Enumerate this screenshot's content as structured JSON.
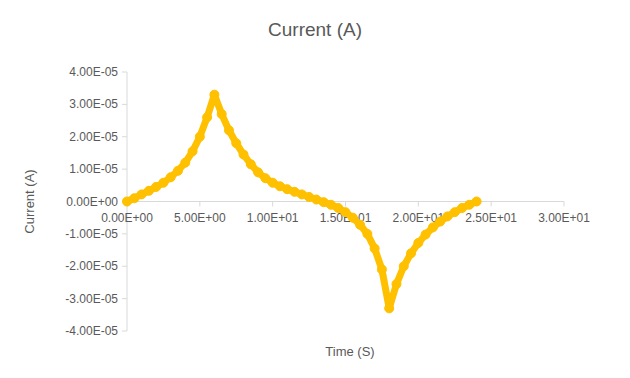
{
  "chart_data": {
    "type": "line",
    "title": "Current (A)",
    "x_label": "Time (S)",
    "y_label": "Current (A)",
    "x": [
      0,
      0.5,
      1,
      1.5,
      2,
      2.5,
      3,
      3.5,
      4,
      4.5,
      5,
      5.5,
      6,
      6.5,
      7,
      7.5,
      8,
      8.5,
      9,
      9.5,
      10,
      10.5,
      11,
      11.5,
      12,
      12.5,
      13,
      13.5,
      14,
      14.5,
      15,
      15.5,
      16,
      16.5,
      17,
      17.5,
      18,
      18.5,
      19,
      19.5,
      20,
      20.5,
      21,
      21.5,
      22,
      22.5,
      23,
      23.5,
      24
    ],
    "series": [
      {
        "name": "Current (A)",
        "color": "#ffc000",
        "marker": "circle",
        "line_style": "solid",
        "values": [
          0,
          1e-06,
          2.2e-06,
          3.3e-06,
          4.5e-06,
          5.8e-06,
          7.5e-06,
          9.5e-06,
          1.2e-05,
          1.55e-05,
          2e-05,
          2.6e-05,
          3.3e-05,
          2.7e-05,
          2.2e-05,
          1.8e-05,
          1.45e-05,
          1.15e-05,
          9e-06,
          7.2e-06,
          5.8e-06,
          4.7e-06,
          3.8e-06,
          3e-06,
          2.2e-06,
          1.4e-06,
          6e-07,
          -2e-07,
          -1e-06,
          -2e-06,
          -3.3e-06,
          -5e-06,
          -7.2e-06,
          -1e-05,
          -1.45e-05,
          -2.1e-05,
          -3.3e-05,
          -2.55e-05,
          -2e-05,
          -1.6e-05,
          -1.28e-05,
          -1.02e-05,
          -8e-06,
          -6.2e-06,
          -4.6e-06,
          -3.3e-06,
          -2e-06,
          -1e-06,
          0
        ]
      }
    ],
    "xlim": [
      0,
      30
    ],
    "xticks": [
      {
        "value": 0,
        "label": "0.00E+00"
      },
      {
        "value": 5,
        "label": "5.00E+00"
      },
      {
        "value": 10,
        "label": "1.00E+01"
      },
      {
        "value": 15,
        "label": "1.50E+01"
      },
      {
        "value": 20,
        "label": "2.00E+01"
      },
      {
        "value": 25,
        "label": "2.50E+01"
      },
      {
        "value": 30,
        "label": "3.00E+01"
      }
    ],
    "ylim": [
      -4e-05,
      4e-05
    ],
    "yticks": [
      {
        "value": 4e-05,
        "label": "4.00E-05"
      },
      {
        "value": 3e-05,
        "label": "3.00E-05"
      },
      {
        "value": 2e-05,
        "label": "2.00E-05"
      },
      {
        "value": 1e-05,
        "label": "1.00E-05"
      },
      {
        "value": 0,
        "label": "0.00E+00"
      },
      {
        "value": -1e-05,
        "label": "-1.00E-05"
      },
      {
        "value": -2e-05,
        "label": "-2.00E-05"
      },
      {
        "value": -3e-05,
        "label": "-3.00E-05"
      },
      {
        "value": -4e-05,
        "label": "-4.00E-05"
      }
    ],
    "grid": false
  }
}
